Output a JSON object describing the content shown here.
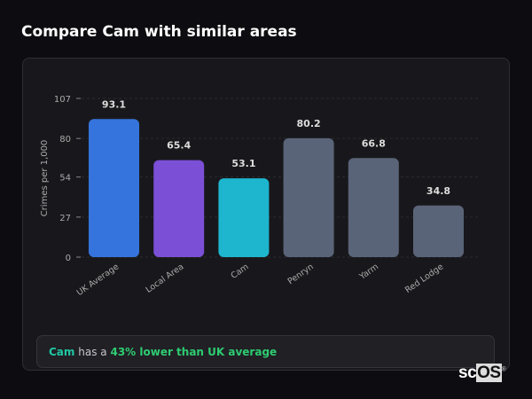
{
  "header": {
    "title": "Compare Cam with similar areas"
  },
  "chart_data": {
    "type": "bar",
    "title": "",
    "xlabel": "",
    "ylabel": "Crimes per 1,000",
    "categories": [
      "UK Average",
      "Local Area",
      "Cam",
      "Penryn",
      "Yarm",
      "Red Lodge"
    ],
    "values": [
      93.1,
      65.4,
      53.1,
      80.2,
      66.8,
      34.8
    ],
    "data_labels": [
      "93.1",
      "65.4",
      "53.1",
      "80.2",
      "66.8",
      "34.8"
    ],
    "colors": [
      "#3574dc",
      "#7b4fd6",
      "#1eb6cf",
      "#5a6478",
      "#5a6478",
      "#5a6478"
    ],
    "yticks": [
      0,
      27,
      54,
      80,
      107
    ],
    "ylim": [
      0,
      107
    ],
    "grid": true
  },
  "insight": {
    "area": "Cam",
    "middle": "has a",
    "highlight": "43% lower than UK average"
  },
  "logo": {
    "text_a": "sc",
    "text_b": "OS",
    "mark": "®"
  }
}
